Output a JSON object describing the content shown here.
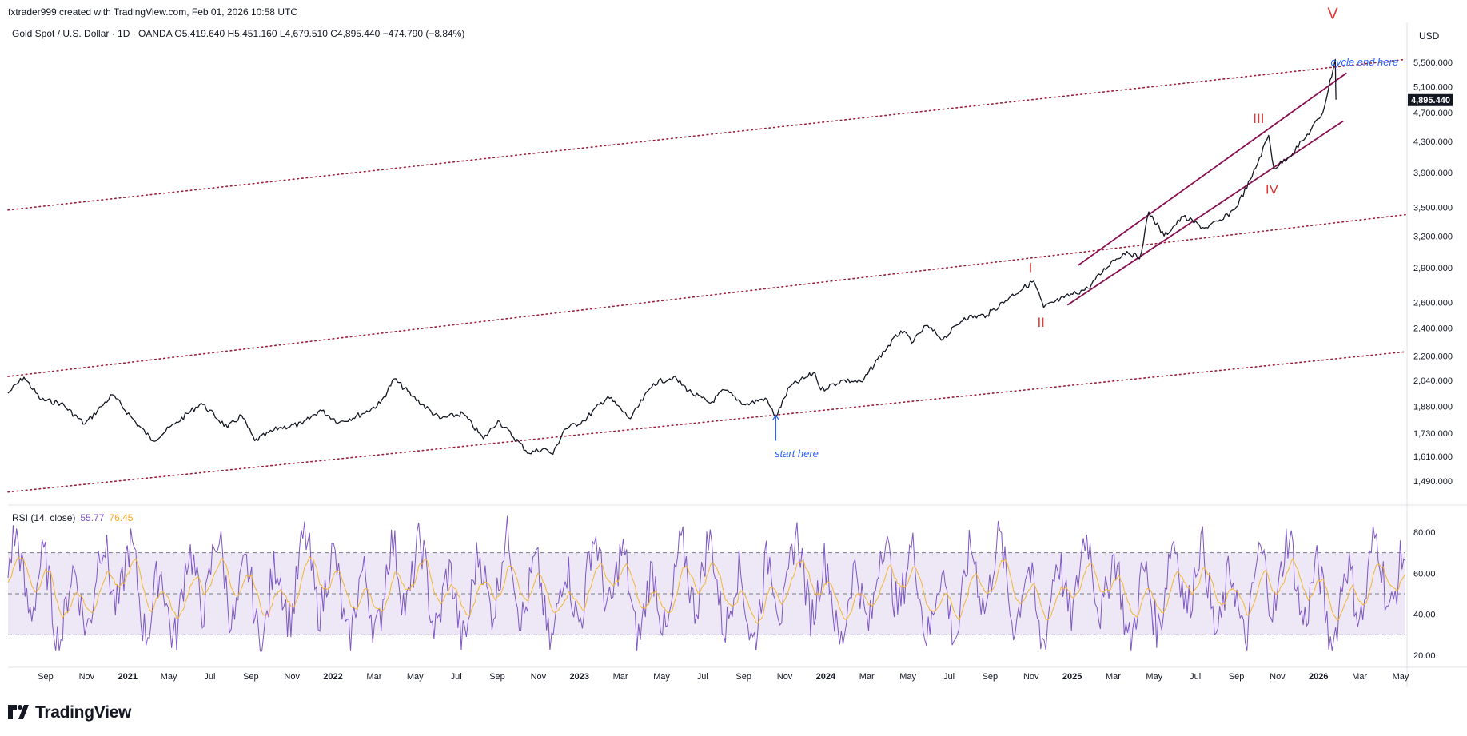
{
  "header": {
    "credit": "fxtrader999 created with TradingView.com, Feb 01, 2026 10:58 UTC",
    "symbol_line": "Gold Spot / U.S. Dollar · 1D · OANDA  O5,419.640  H5,451.160  L4,679.510  C4,895.440  −474.790 (−8.84%)",
    "currency": "USD"
  },
  "brand": "TradingView",
  "rsi_header": {
    "label": "RSI (14, close)",
    "value_rsi": "55.77",
    "value_ma": "76.45"
  },
  "colors": {
    "price": "#131722",
    "channel": "#880e4f",
    "dotted": "#9c1f3c",
    "wave_label": "#e53935",
    "annotation": "#2962ff",
    "rsi": "#7e57c2",
    "rsi_ma": "#f5b731",
    "rsi_band": "#ede7f6"
  },
  "annotations": {
    "start": "start here",
    "end": "cycle end here",
    "waves": [
      "I",
      "II",
      "III",
      "IV",
      "V"
    ]
  },
  "chart_data": [
    {
      "type": "line",
      "title": "Gold Spot / U.S. Dollar · 1D · OANDA",
      "x_ticks": [
        "Sep",
        "Nov",
        "2021",
        "May",
        "Jul",
        "Sep",
        "Nov",
        "2022",
        "Mar",
        "May",
        "Jul",
        "Sep",
        "Nov",
        "2023",
        "Mar",
        "May",
        "Jul",
        "Sep",
        "Nov",
        "2024",
        "Mar",
        "May",
        "Jul",
        "Sep",
        "Nov",
        "2025",
        "Mar",
        "May",
        "Jul",
        "Sep",
        "Nov",
        "2026",
        "Mar",
        "May"
      ],
      "y_ticks": [
        1490,
        1610,
        1730,
        1880,
        2040,
        2200,
        2400,
        2600,
        2900,
        3200,
        3500,
        3900,
        4300,
        4700,
        5100,
        5500
      ],
      "y_tick_labels": [
        "1,490.000",
        "1,610.000",
        "1,730.000",
        "1,880.000",
        "2,040.000",
        "2,200.000",
        "2,400.000",
        "2,600.000",
        "2,900.000",
        "3,200.000",
        "3,500.000",
        "3,900.000",
        "4,300.000",
        "4,700.000",
        "5,100.000",
        "5,500.000"
      ],
      "y_scale": "log",
      "last_price_label": "4,895.440",
      "x_range": [
        "2020-08-01",
        "2026-05-15"
      ],
      "series": [
        {
          "x": [
            "2020-08-01",
            "2020-08-25",
            "2020-09-20",
            "2020-10-20",
            "2020-11-25",
            "2020-12-20",
            "2021-01-06",
            "2021-02-10",
            "2021-03-08",
            "2021-04-10",
            "2021-05-20",
            "2021-06-29",
            "2021-07-20",
            "2021-08-09",
            "2021-09-15",
            "2021-10-20",
            "2021-11-16",
            "2021-12-15",
            "2022-01-20",
            "2022-02-15",
            "2022-03-08",
            "2022-04-05",
            "2022-05-16",
            "2022-06-20",
            "2022-07-21",
            "2022-08-12",
            "2022-09-28",
            "2022-10-20",
            "2022-11-03",
            "2022-11-20",
            "2022-12-20",
            "2023-01-25",
            "2023-02-28",
            "2023-04-04",
            "2023-05-04",
            "2023-06-01",
            "2023-06-29",
            "2023-07-20",
            "2023-08-21",
            "2023-09-20",
            "2023-10-06",
            "2023-10-27",
            "2023-12-04",
            "2023-12-13",
            "2024-01-15",
            "2024-02-14",
            "2024-03-08",
            "2024-04-12",
            "2024-05-01",
            "2024-05-20",
            "2024-06-15",
            "2024-07-17",
            "2024-08-20",
            "2024-09-25",
            "2024-10-30",
            "2024-11-14",
            "2024-12-15",
            "2025-01-20",
            "2025-02-24",
            "2025-03-20",
            "2025-04-08",
            "2025-04-22",
            "2025-05-15",
            "2025-06-13",
            "2025-07-15",
            "2025-08-10",
            "2025-09-01",
            "2025-09-25",
            "2025-10-20",
            "2025-10-28",
            "2025-11-20",
            "2025-12-15",
            "2026-01-10",
            "2026-01-29",
            "2026-01-30"
          ],
          "y": [
            1960,
            2060,
            1920,
            1900,
            1780,
            1880,
            1950,
            1790,
            1690,
            1780,
            1900,
            1760,
            1830,
            1690,
            1760,
            1780,
            1860,
            1790,
            1840,
            1900,
            2050,
            1940,
            1810,
            1840,
            1700,
            1800,
            1625,
            1650,
            1620,
            1750,
            1800,
            1940,
            1810,
            2020,
            2060,
            1960,
            1900,
            1980,
            1890,
            1930,
            1820,
            2000,
            2090,
            1980,
            2040,
            2030,
            2180,
            2380,
            2300,
            2420,
            2320,
            2480,
            2500,
            2650,
            2780,
            2560,
            2640,
            2720,
            2950,
            3050,
            2980,
            3450,
            3200,
            3400,
            3280,
            3360,
            3500,
            3850,
            4380,
            3950,
            4100,
            4350,
            4700,
            5550,
            4895
          ]
        }
      ],
      "xlabel": "",
      "ylabel": ""
    },
    {
      "type": "line",
      "title": "RSI (14, close)",
      "y_ticks": [
        20,
        40,
        60,
        80
      ],
      "y_tick_labels": [
        "20.00",
        "40.00",
        "60.00",
        "80.00"
      ],
      "bands": {
        "upper": 70,
        "middle": 50,
        "lower": 30
      },
      "series": [
        {
          "name": "RSI",
          "last": 55.77
        },
        {
          "name": "RSI-MA",
          "last": 76.45
        }
      ]
    }
  ]
}
